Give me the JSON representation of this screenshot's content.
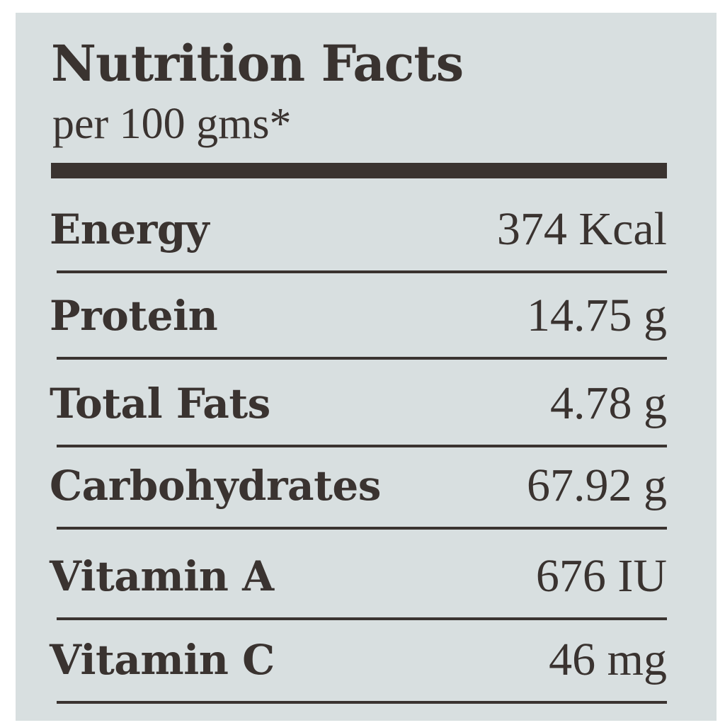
{
  "label": {
    "title": "Nutrition Facts",
    "subtitle": "per 100 gms*",
    "rows": [
      {
        "name": "Energy",
        "value": "374 Kcal"
      },
      {
        "name": "Protein",
        "value": "14.75 g"
      },
      {
        "name": "Total Fats",
        "value": "4.78 g"
      },
      {
        "name": "Carbohydrates",
        "value": "67.92 g"
      },
      {
        "name": "Vitamin A",
        "value": "676 IU"
      },
      {
        "name": "Vitamin C",
        "value": "46 mg"
      }
    ]
  },
  "colors": {
    "background": "#d8dfe0",
    "ink": "#3a3330"
  }
}
